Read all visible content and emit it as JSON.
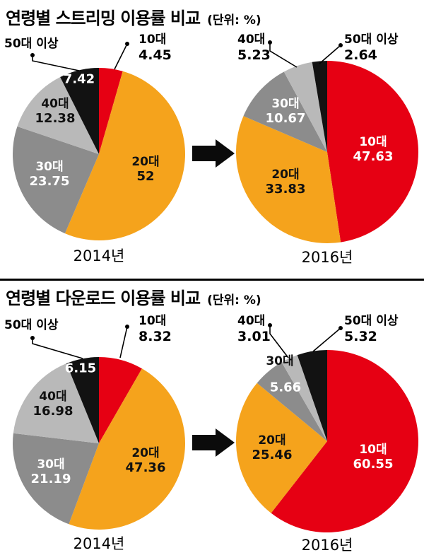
{
  "chart_data": [
    {
      "type": "pie",
      "title": "연령별 스트리밍 이용률 비교",
      "unit": "(단위: %)",
      "colors": {
        "10대": "#e60013",
        "20대": "#f5a31c",
        "30대": "#8c8c8c",
        "40대": "#b9b9b9",
        "50대 이상": "#121212"
      },
      "pies": [
        {
          "year": "2014년",
          "labels": [
            "10대",
            "20대",
            "30대",
            "40대",
            "50대 이상"
          ],
          "values": [
            4.45,
            52,
            23.75,
            12.38,
            7.42
          ]
        },
        {
          "year": "2016년",
          "labels": [
            "10대",
            "20대",
            "30대",
            "40대",
            "50대 이상"
          ],
          "values": [
            47.63,
            33.83,
            10.67,
            5.23,
            2.64
          ]
        }
      ]
    },
    {
      "type": "pie",
      "title": "연령별 다운로드 이용률 비교",
      "unit": "(단위: %)",
      "colors": {
        "10대": "#e60013",
        "20대": "#f5a31c",
        "30대": "#8c8c8c",
        "40대": "#b9b9b9",
        "50대 이상": "#121212"
      },
      "pies": [
        {
          "year": "2014년",
          "labels": [
            "10대",
            "20대",
            "30대",
            "40대",
            "50대 이상"
          ],
          "values": [
            8.32,
            47.36,
            21.19,
            16.98,
            6.15
          ]
        },
        {
          "year": "2016년",
          "labels": [
            "10대",
            "20대",
            "30대",
            "40대",
            "50대 이상"
          ],
          "values": [
            60.55,
            25.46,
            5.66,
            3.01,
            5.32
          ]
        }
      ]
    }
  ]
}
